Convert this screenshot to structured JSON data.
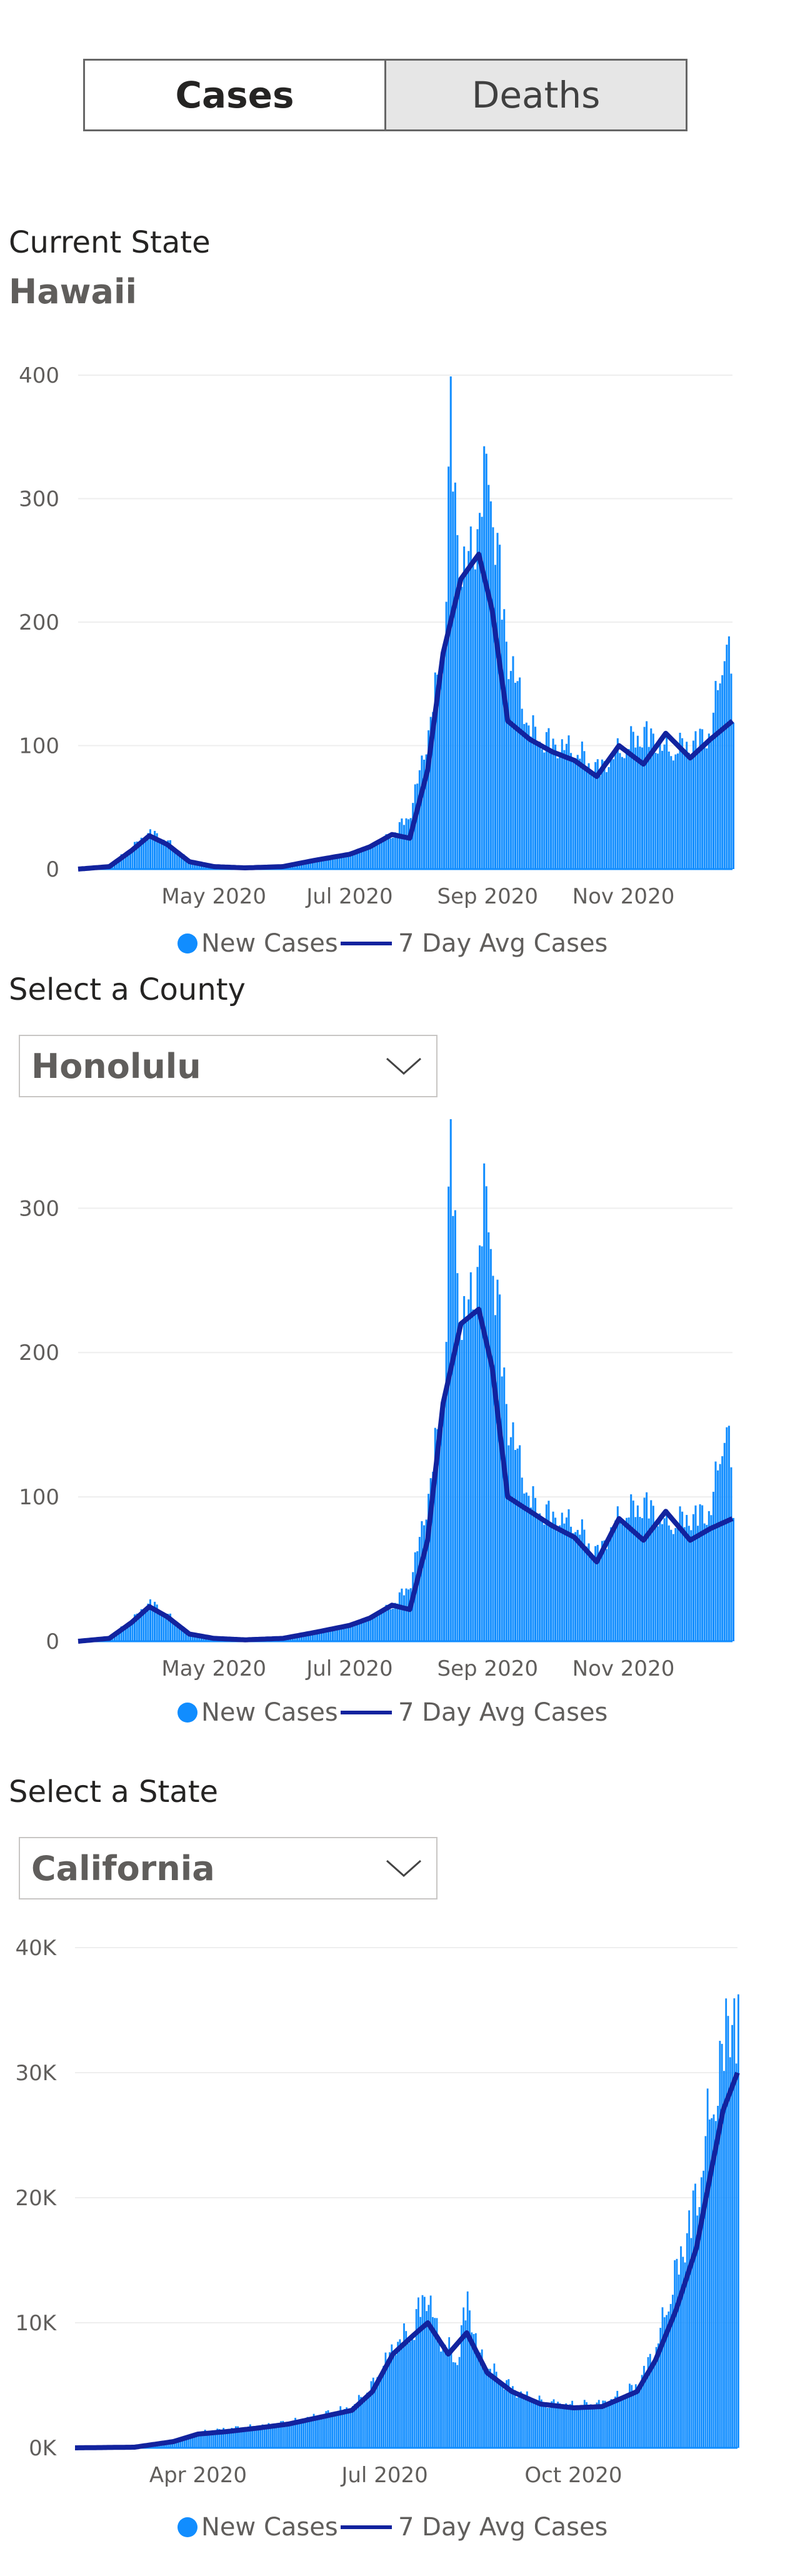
{
  "tabs": {
    "cases_label": "Cases",
    "deaths_label": "Deaths"
  },
  "state_section": {
    "label": "Current State",
    "state_name": "Hawaii"
  },
  "county_section": {
    "label": "Select a County",
    "selected": "Honolulu"
  },
  "state_select_section": {
    "label": "Select a State",
    "selected": "California"
  },
  "colors": {
    "bars": "#118dff",
    "line": "#12239e",
    "grid": "#eeeeee"
  },
  "legend": {
    "bars_label": "New Cases",
    "line_label": "7 Day Avg Cases"
  },
  "chart_data": [
    {
      "type": "bar",
      "xlim": [
        "2020-03-01",
        "2020-12-20"
      ],
      "ylim": [
        0,
        400
      ],
      "yticks": [
        0,
        100,
        200,
        300,
        400
      ],
      "ytick_labels": [
        "0",
        "100",
        "200",
        "300",
        "400"
      ],
      "xticks": [
        "2020-05-01",
        "2020-07-01",
        "2020-09-01",
        "2020-11-01"
      ],
      "xtick_labels": [
        "May 2020",
        "Jul 2020",
        "Sep 2020",
        "Nov 2020"
      ],
      "grid": true,
      "legend_position": "bottom",
      "series": [
        {
          "name": "New Cases",
          "kind": "bar",
          "points": [
            [
              "2020-03-01",
              0
            ],
            [
              "2020-03-15",
              3
            ],
            [
              "2020-03-25",
              18
            ],
            [
              "2020-04-02",
              30
            ],
            [
              "2020-04-10",
              22
            ],
            [
              "2020-04-20",
              6
            ],
            [
              "2020-05-01",
              2
            ],
            [
              "2020-05-15",
              1
            ],
            [
              "2020-06-01",
              2
            ],
            [
              "2020-06-15",
              7
            ],
            [
              "2020-07-01",
              12
            ],
            [
              "2020-07-10",
              18
            ],
            [
              "2020-07-20",
              28
            ],
            [
              "2020-07-28",
              45
            ],
            [
              "2020-08-05",
              110
            ],
            [
              "2020-08-12",
              180
            ],
            [
              "2020-08-15",
              355
            ],
            [
              "2020-08-20",
              230
            ],
            [
              "2020-08-25",
              260
            ],
            [
              "2020-08-30",
              300
            ],
            [
              "2020-09-01",
              335
            ],
            [
              "2020-09-05",
              250
            ],
            [
              "2020-09-10",
              170
            ],
            [
              "2020-09-20",
              110
            ],
            [
              "2020-09-30",
              100
            ],
            [
              "2020-10-10",
              95
            ],
            [
              "2020-10-20",
              80
            ],
            [
              "2020-10-30",
              95
            ],
            [
              "2020-11-10",
              110
            ],
            [
              "2020-11-20",
              95
            ],
            [
              "2020-12-01",
              100
            ],
            [
              "2020-12-10",
              110
            ],
            [
              "2020-12-17",
              190
            ],
            [
              "2020-12-20",
              125
            ]
          ]
        },
        {
          "name": "7 Day Avg Cases",
          "kind": "line",
          "points": [
            [
              "2020-03-01",
              0
            ],
            [
              "2020-03-15",
              2
            ],
            [
              "2020-03-25",
              15
            ],
            [
              "2020-04-02",
              27
            ],
            [
              "2020-04-10",
              20
            ],
            [
              "2020-04-20",
              6
            ],
            [
              "2020-05-01",
              2
            ],
            [
              "2020-05-15",
              1
            ],
            [
              "2020-06-01",
              2
            ],
            [
              "2020-06-15",
              7
            ],
            [
              "2020-07-01",
              12
            ],
            [
              "2020-07-10",
              18
            ],
            [
              "2020-07-20",
              28
            ],
            [
              "2020-07-28",
              25
            ],
            [
              "2020-08-05",
              80
            ],
            [
              "2020-08-12",
              175
            ],
            [
              "2020-08-20",
              235
            ],
            [
              "2020-08-28",
              255
            ],
            [
              "2020-09-03",
              210
            ],
            [
              "2020-09-10",
              120
            ],
            [
              "2020-09-20",
              105
            ],
            [
              "2020-09-30",
              95
            ],
            [
              "2020-10-10",
              88
            ],
            [
              "2020-10-20",
              75
            ],
            [
              "2020-10-30",
              100
            ],
            [
              "2020-11-10",
              85
            ],
            [
              "2020-11-20",
              110
            ],
            [
              "2020-12-01",
              90
            ],
            [
              "2020-12-10",
              105
            ],
            [
              "2020-12-20",
              120
            ]
          ]
        }
      ]
    },
    {
      "type": "bar",
      "xlim": [
        "2020-03-01",
        "2020-12-20"
      ],
      "ylim": [
        0,
        340
      ],
      "yticks": [
        0,
        100,
        200,
        300
      ],
      "ytick_labels": [
        "0",
        "100",
        "200",
        "300"
      ],
      "xticks": [
        "2020-05-01",
        "2020-07-01",
        "2020-09-01",
        "2020-11-01"
      ],
      "xtick_labels": [
        "May 2020",
        "Jul 2020",
        "Sep 2020",
        "Nov 2020"
      ],
      "grid": true,
      "legend_position": "bottom",
      "series": [
        {
          "name": "New Cases",
          "kind": "bar",
          "points": [
            [
              "2020-03-01",
              0
            ],
            [
              "2020-03-15",
              3
            ],
            [
              "2020-03-25",
              15
            ],
            [
              "2020-04-02",
              27
            ],
            [
              "2020-04-10",
              18
            ],
            [
              "2020-04-20",
              5
            ],
            [
              "2020-05-01",
              2
            ],
            [
              "2020-05-15",
              1
            ],
            [
              "2020-06-01",
              2
            ],
            [
              "2020-06-15",
              6
            ],
            [
              "2020-07-01",
              11
            ],
            [
              "2020-07-10",
              16
            ],
            [
              "2020-07-20",
              25
            ],
            [
              "2020-07-28",
              40
            ],
            [
              "2020-08-05",
              100
            ],
            [
              "2020-08-12",
              170
            ],
            [
              "2020-08-15",
              345
            ],
            [
              "2020-08-20",
              210
            ],
            [
              "2020-08-25",
              240
            ],
            [
              "2020-08-30",
              290
            ],
            [
              "2020-09-01",
              305
            ],
            [
              "2020-09-05",
              230
            ],
            [
              "2020-09-10",
              150
            ],
            [
              "2020-09-20",
              95
            ],
            [
              "2020-09-30",
              85
            ],
            [
              "2020-10-10",
              80
            ],
            [
              "2020-10-20",
              60
            ],
            [
              "2020-10-30",
              85
            ],
            [
              "2020-11-10",
              95
            ],
            [
              "2020-11-20",
              80
            ],
            [
              "2020-12-01",
              85
            ],
            [
              "2020-12-10",
              90
            ],
            [
              "2020-12-17",
              155
            ],
            [
              "2020-12-20",
              90
            ]
          ]
        },
        {
          "name": "7 Day Avg Cases",
          "kind": "line",
          "points": [
            [
              "2020-03-01",
              0
            ],
            [
              "2020-03-15",
              2
            ],
            [
              "2020-03-25",
              13
            ],
            [
              "2020-04-02",
              24
            ],
            [
              "2020-04-10",
              17
            ],
            [
              "2020-04-20",
              5
            ],
            [
              "2020-05-01",
              2
            ],
            [
              "2020-05-15",
              1
            ],
            [
              "2020-06-01",
              2
            ],
            [
              "2020-06-15",
              6
            ],
            [
              "2020-07-01",
              11
            ],
            [
              "2020-07-10",
              16
            ],
            [
              "2020-07-20",
              25
            ],
            [
              "2020-07-28",
              22
            ],
            [
              "2020-08-05",
              70
            ],
            [
              "2020-08-12",
              165
            ],
            [
              "2020-08-20",
              220
            ],
            [
              "2020-08-28",
              230
            ],
            [
              "2020-09-03",
              190
            ],
            [
              "2020-09-10",
              100
            ],
            [
              "2020-09-20",
              90
            ],
            [
              "2020-09-30",
              80
            ],
            [
              "2020-10-10",
              72
            ],
            [
              "2020-10-20",
              55
            ],
            [
              "2020-10-30",
              85
            ],
            [
              "2020-11-10",
              70
            ],
            [
              "2020-11-20",
              90
            ],
            [
              "2020-12-01",
              70
            ],
            [
              "2020-12-10",
              78
            ],
            [
              "2020-12-20",
              85
            ]
          ]
        }
      ]
    },
    {
      "type": "bar",
      "xlim": [
        "2020-02-01",
        "2020-12-20"
      ],
      "ylim": [
        0,
        40000
      ],
      "yticks": [
        0,
        10000,
        20000,
        30000,
        40000
      ],
      "ytick_labels": [
        "0K",
        "10K",
        "20K",
        "30K",
        "40K"
      ],
      "xticks": [
        "2020-04-01",
        "2020-07-01",
        "2020-10-01"
      ],
      "xtick_labels": [
        "Apr 2020",
        "Jul 2020",
        "Oct 2020"
      ],
      "grid": true,
      "legend_position": "bottom",
      "series": [
        {
          "name": "New Cases",
          "kind": "bar",
          "points": [
            [
              "2020-02-01",
              0
            ],
            [
              "2020-03-01",
              100
            ],
            [
              "2020-03-20",
              600
            ],
            [
              "2020-04-01",
              1200
            ],
            [
              "2020-04-15",
              1500
            ],
            [
              "2020-05-01",
              1700
            ],
            [
              "2020-05-15",
              2000
            ],
            [
              "2020-06-01",
              2600
            ],
            [
              "2020-06-15",
              3200
            ],
            [
              "2020-06-25",
              5000
            ],
            [
              "2020-07-05",
              8000
            ],
            [
              "2020-07-15",
              9500
            ],
            [
              "2020-07-20",
              12500
            ],
            [
              "2020-07-28",
              8500
            ],
            [
              "2020-08-05",
              7000
            ],
            [
              "2020-08-10",
              12000
            ],
            [
              "2020-08-15",
              7500
            ],
            [
              "2020-08-25",
              5500
            ],
            [
              "2020-09-05",
              4200
            ],
            [
              "2020-09-15",
              3600
            ],
            [
              "2020-10-01",
              3300
            ],
            [
              "2020-10-15",
              3500
            ],
            [
              "2020-10-25",
              4200
            ],
            [
              "2020-11-01",
              5000
            ],
            [
              "2020-11-10",
              8000
            ],
            [
              "2020-11-20",
              14000
            ],
            [
              "2020-11-30",
              20000
            ],
            [
              "2020-12-07",
              27000
            ],
            [
              "2020-12-12",
              30000
            ],
            [
              "2020-12-15",
              35000
            ],
            [
              "2020-12-20",
              33000
            ]
          ]
        },
        {
          "name": "7 Day Avg Cases",
          "kind": "line",
          "points": [
            [
              "2020-02-01",
              0
            ],
            [
              "2020-03-01",
              50
            ],
            [
              "2020-03-20",
              500
            ],
            [
              "2020-04-01",
              1100
            ],
            [
              "2020-04-15",
              1300
            ],
            [
              "2020-05-01",
              1600
            ],
            [
              "2020-05-15",
              1900
            ],
            [
              "2020-06-01",
              2500
            ],
            [
              "2020-06-15",
              3000
            ],
            [
              "2020-06-25",
              4500
            ],
            [
              "2020-07-05",
              7500
            ],
            [
              "2020-07-15",
              9000
            ],
            [
              "2020-07-22",
              10000
            ],
            [
              "2020-08-01",
              7500
            ],
            [
              "2020-08-10",
              9200
            ],
            [
              "2020-08-20",
              6000
            ],
            [
              "2020-09-01",
              4500
            ],
            [
              "2020-09-15",
              3500
            ],
            [
              "2020-10-01",
              3200
            ],
            [
              "2020-10-15",
              3300
            ],
            [
              "2020-10-25",
              4000
            ],
            [
              "2020-11-01",
              4500
            ],
            [
              "2020-11-10",
              7000
            ],
            [
              "2020-11-20",
              11000
            ],
            [
              "2020-11-30",
              16000
            ],
            [
              "2020-12-07",
              22000
            ],
            [
              "2020-12-13",
              27000
            ],
            [
              "2020-12-20",
              30000
            ]
          ]
        }
      ]
    }
  ]
}
